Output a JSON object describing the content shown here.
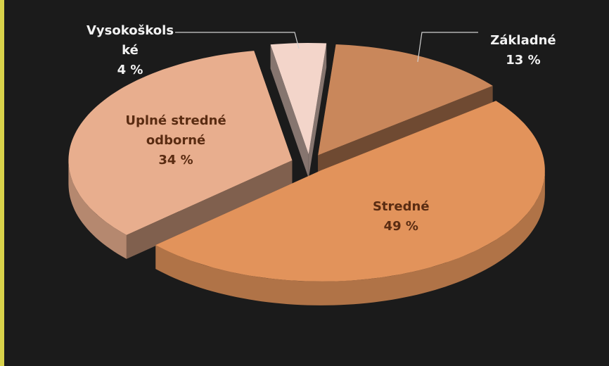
{
  "chart_data": {
    "type": "pie",
    "categories": [
      "Základné",
      "Stredné",
      "Uplné stredné odborné",
      "Vysokoškolské"
    ],
    "values": [
      13,
      49,
      34,
      4
    ],
    "value_labels": [
      "13 %",
      "49 %",
      "34 %",
      "4 %"
    ],
    "colors": [
      "#c9875b",
      "#e2935b",
      "#e8ae8e",
      "#f3d5ca"
    ],
    "three_d": true,
    "exploded": true
  }
}
